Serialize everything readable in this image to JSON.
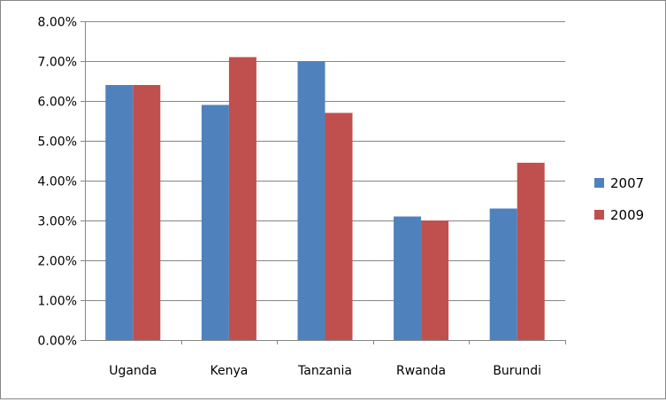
{
  "chart_data": {
    "type": "bar",
    "categories": [
      "Uganda",
      "Kenya",
      "Tanzania",
      "Rwanda",
      "Burundi"
    ],
    "series": [
      {
        "name": "2007",
        "values": [
          6.4,
          5.9,
          7.0,
          3.1,
          3.3
        ],
        "color": "#4f81bd"
      },
      {
        "name": "2009",
        "values": [
          6.4,
          7.1,
          5.7,
          3.0,
          4.45
        ],
        "color": "#c0504d"
      }
    ],
    "title": "",
    "xlabel": "",
    "ylabel": "",
    "ylim": [
      0,
      8
    ],
    "yticks": [
      "0.00%",
      "1.00%",
      "2.00%",
      "3.00%",
      "4.00%",
      "5.00%",
      "6.00%",
      "7.00%",
      "8.00%"
    ],
    "grid": true,
    "legend": "right"
  }
}
